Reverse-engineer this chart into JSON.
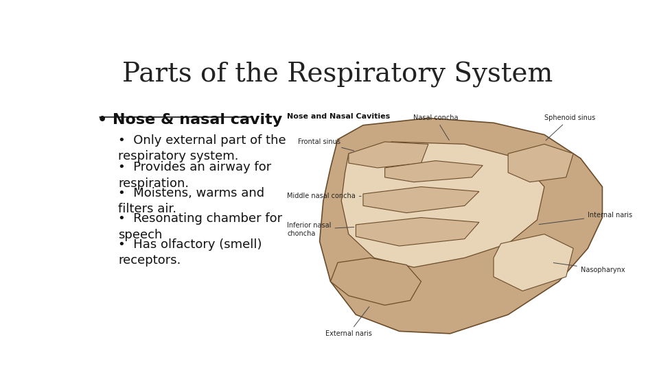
{
  "title": "Parts of the Respiratory System",
  "title_fontsize": 28,
  "title_font": "serif",
  "title_color": "#222222",
  "background_color": "#ffffff",
  "main_bullet": "Nose & nasal cavity",
  "main_bullet_fontsize": 16,
  "sub_bullets": [
    "Only external part of the\nrespiratory system.",
    "Provides an airway for\nrespiration.",
    "Moistens, warms and\nfilters air.",
    "Resonating chamber for\nspeech",
    "Has olfactory (smell)\nreceptors."
  ],
  "sub_bullet_fontsize": 13,
  "image_label": "Nose and Nasal Cavities",
  "image_label_fontsize": 8,
  "text_color": "#111111",
  "bullet_color": "#111111",
  "skin_color": "#c8a882",
  "cavity_color": "#e8d5b7",
  "dark_line": "#6b4c2a",
  "bg_beige": "#d4b896",
  "label_color": "#222222",
  "line_color": "#444444"
}
